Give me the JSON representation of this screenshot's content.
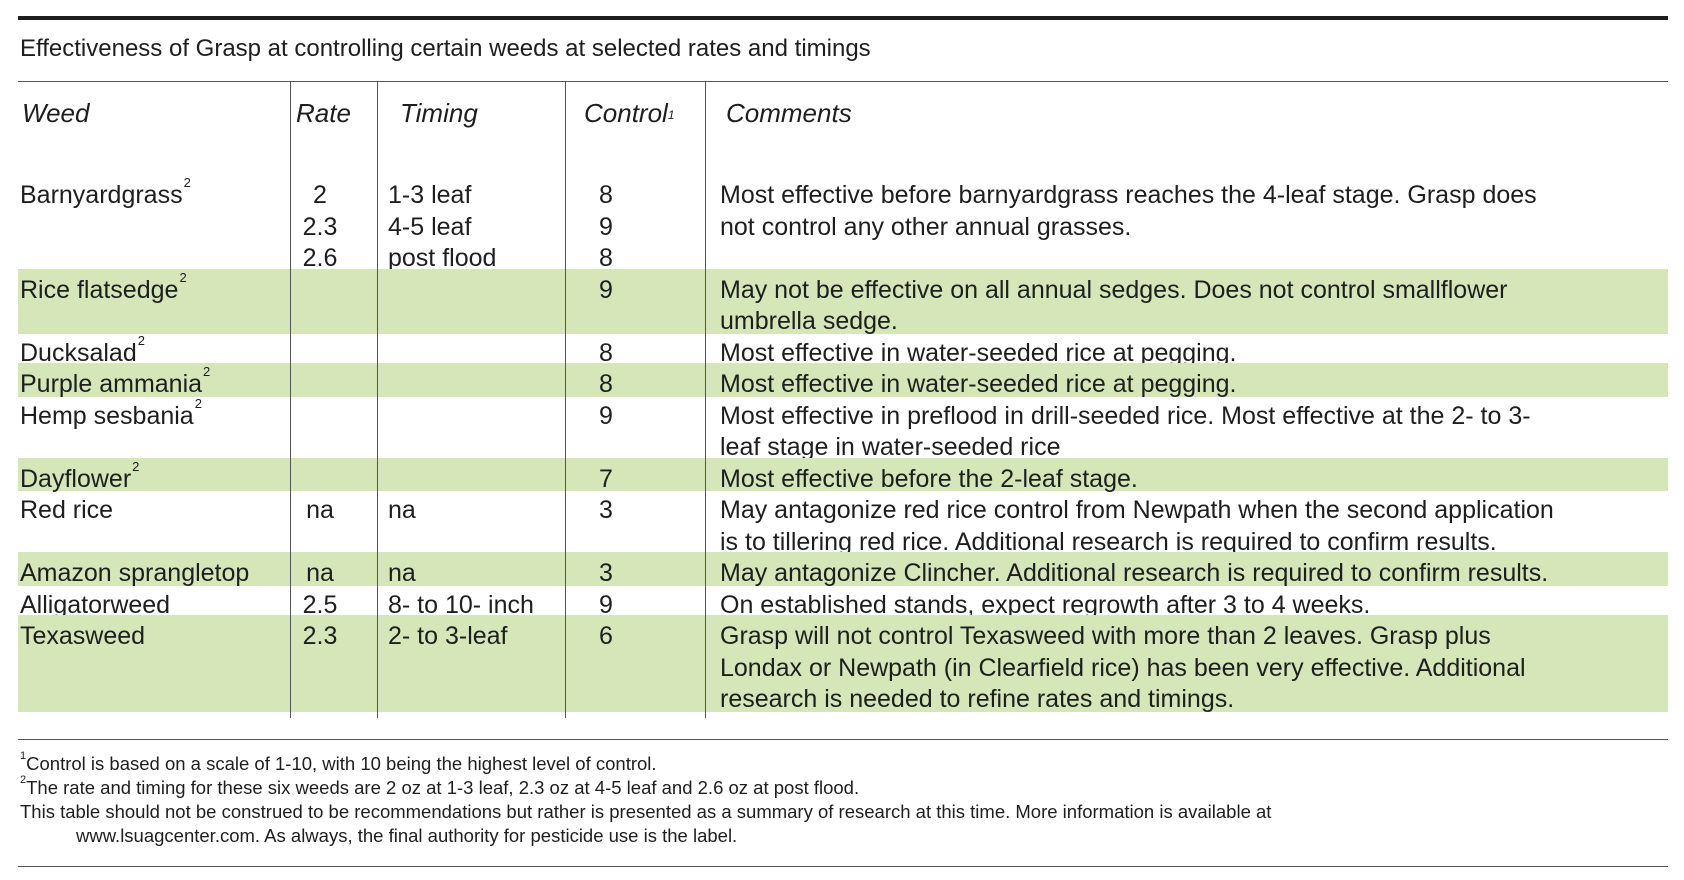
{
  "title": "Effectiveness of Grasp at controlling certain weeds at selected rates and timings",
  "headers": {
    "weed": "Weed",
    "rate": "Rate",
    "timing": "Timing",
    "control": "Control",
    "control_sup": "1",
    "comments": "Comments"
  },
  "rows": [
    {
      "weed": "Barnyardgrass",
      "sup": "2",
      "rate": [
        "2",
        "2.3",
        "2.6"
      ],
      "timing": [
        "1-3 leaf",
        "4-5 leaf",
        "post flood"
      ],
      "control": [
        "8",
        "9",
        "8"
      ],
      "comments": [
        "Most effective before barnyardgrass reaches the 4-leaf stage. Grasp does",
        "not control any other annual grasses."
      ],
      "shaded": false
    },
    {
      "weed": "Rice flatsedge",
      "sup": "2",
      "rate": [],
      "timing": [],
      "control": [
        "9"
      ],
      "comments": [
        "May not be effective on all annual sedges. Does not control smallflower",
        "umbrella sedge."
      ],
      "shaded": true
    },
    {
      "weed": "Ducksalad",
      "sup": "2",
      "rate": [],
      "timing": [],
      "control": [
        "8"
      ],
      "comments": [
        "Most effective in water-seeded rice at pegging."
      ],
      "shaded": false
    },
    {
      "weed": "Purple ammania",
      "sup": "2",
      "rate": [],
      "timing": [],
      "control": [
        "8"
      ],
      "comments": [
        "Most effective in water-seeded rice at pegging."
      ],
      "shaded": true
    },
    {
      "weed": "Hemp sesbania",
      "sup": "2",
      "rate": [],
      "timing": [],
      "control": [
        "9"
      ],
      "comments": [
        "Most effective in preflood in drill-seeded rice. Most effective at the 2- to 3-",
        "leaf stage in water-seeded rice"
      ],
      "shaded": false
    },
    {
      "weed": "Dayflower",
      "sup": "2",
      "rate": [],
      "timing": [],
      "control": [
        "7"
      ],
      "comments": [
        "Most effective before the 2-leaf stage."
      ],
      "shaded": true
    },
    {
      "weed": "Red rice",
      "sup": "",
      "rate": [
        "na"
      ],
      "timing": [
        "na"
      ],
      "control": [
        "3"
      ],
      "comments": [
        "May antagonize red rice control from Newpath when the second application",
        "is to tillering red rice. Additional research is required to confirm results."
      ],
      "shaded": false
    },
    {
      "weed": "Amazon sprangletop",
      "sup": "",
      "rate": [
        "na"
      ],
      "timing": [
        "na"
      ],
      "control": [
        "3"
      ],
      "comments": [
        "May antagonize Clincher. Additional research is required to confirm results."
      ],
      "shaded": true
    },
    {
      "weed": "Alligatorweed",
      "sup": "",
      "rate": [
        "2.5"
      ],
      "timing": [
        "8- to 10- inch"
      ],
      "control": [
        "9"
      ],
      "comments": [
        "On established stands, expect regrowth after 3 to 4 weeks."
      ],
      "shaded": false
    },
    {
      "weed": "Texasweed",
      "sup": "",
      "rate": [
        "2.3"
      ],
      "timing": [
        "2- to 3-leaf"
      ],
      "control": [
        "6"
      ],
      "comments": [
        "Grasp will not control Texasweed with more than 2 leaves. Grasp plus",
        "Londax or Newpath (in Clearfield rice) has been very effective. Additional",
        "research is needed to refine rates and timings."
      ],
      "shaded": true
    }
  ],
  "footnotes": {
    "f1_sup": "1",
    "f1": "Control is based on a scale of 1-10, with 10 being the highest level of control.",
    "f2_sup": "2",
    "f2": "The rate and timing for these six weeds are 2 oz at 1-3 leaf, 2.3 oz at 4-5 leaf and 2.6 oz at post flood.",
    "disclaimer_1": "This table should not be construed to be recommendations but rather is presented as a summary of research at this time. More information is available at",
    "disclaimer_2": "www.lsuagcenter.com. As always, the final authority for pesticide use is the label."
  },
  "colors": {
    "band": "#d5e7b9",
    "text": "#1e1e1e",
    "rule": "#1e1e1e"
  }
}
